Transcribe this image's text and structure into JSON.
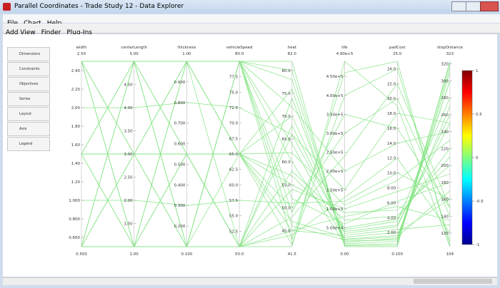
{
  "window": {
    "title": "Parallel Coordinates - Trade Study 12 - Data Explorer"
  },
  "menu": [
    "File",
    "Chart",
    "Help"
  ],
  "toolbar": [
    "Add View",
    "Finder",
    "Plug-Ins"
  ],
  "sidebar": [
    "Dimensions",
    "Constraints",
    "Objectives",
    "Series",
    "Layout",
    "Axis",
    "Legend"
  ],
  "chart_data": {
    "type": "parallel",
    "color": "#84e484",
    "axes": [
      {
        "name": "width",
        "lim": [
          {
            "value": 0.5,
            "label": "0.500"
          },
          {
            "value": 2.5,
            "label": "2.50"
          }
        ],
        "ticks": [
          {
            "value": 0.6,
            "label": "0.600"
          },
          {
            "value": 0.8,
            "label": "0.800"
          },
          {
            "value": 1.0,
            "label": "1.000"
          },
          {
            "value": 1.2,
            "label": "1.20"
          },
          {
            "value": 1.4,
            "label": "1.40"
          },
          {
            "value": 1.6,
            "label": "1.60"
          },
          {
            "value": 1.8,
            "label": "1.80"
          },
          {
            "value": 2.0,
            "label": "2.00"
          },
          {
            "value": 2.2,
            "label": "2.20"
          },
          {
            "value": 2.4,
            "label": "2.40"
          }
        ]
      },
      {
        "name": "centerLength",
        "lim": [
          {
            "value": 1,
            "label": "1.00"
          },
          {
            "value": 5,
            "label": "5.00"
          }
        ],
        "ticks": [
          {
            "value": 1.5,
            "label": "1.50"
          },
          {
            "value": 2,
            "label": "2.00"
          },
          {
            "value": 2.5,
            "label": "2.50"
          },
          {
            "value": 3,
            "label": "3.00"
          },
          {
            "value": 3.5,
            "label": "3.50"
          },
          {
            "value": 4,
            "label": "4.00"
          },
          {
            "value": 4.5,
            "label": "4.50"
          }
        ]
      },
      {
        "name": "thickness",
        "lim": [
          {
            "value": 0.1,
            "label": "0.100"
          },
          {
            "value": 1,
            "label": "1.00"
          }
        ],
        "ticks": [
          {
            "value": 0.2,
            "label": "0.200"
          },
          {
            "value": 0.3,
            "label": "0.300"
          },
          {
            "value": 0.4,
            "label": "0.400"
          },
          {
            "value": 0.5,
            "label": "0.500"
          },
          {
            "value": 0.6,
            "label": "0.600"
          },
          {
            "value": 0.7,
            "label": "0.700"
          },
          {
            "value": 0.8,
            "label": "0.800"
          },
          {
            "value": 0.9,
            "label": "0.900"
          }
        ]
      },
      {
        "name": "vehicleSpeed",
        "lim": [
          {
            "value": 50,
            "label": "50.0"
          },
          {
            "value": 80,
            "label": "80.0"
          }
        ],
        "ticks": [
          52.5,
          {
            "value": 55,
            "label": "55.0"
          },
          57.5,
          {
            "value": 60,
            "label": "60.0"
          },
          62.5,
          {
            "value": 65,
            "label": "65.0"
          },
          67.5,
          {
            "value": 70,
            "label": "70.0"
          },
          72.5,
          {
            "value": 75,
            "label": "75.0"
          },
          77.5
        ]
      },
      {
        "name": "heat",
        "lim": [
          41.5,
          {
            "value": 82,
            "label": "82.0"
          }
        ],
        "ticks": [
          {
            "value": 45,
            "label": "45.0"
          },
          {
            "value": 50,
            "label": "50.0"
          },
          {
            "value": 55,
            "label": "55.0"
          },
          {
            "value": 60,
            "label": "60.0"
          },
          {
            "value": 65,
            "label": "65.0"
          },
          {
            "value": 70,
            "label": "70.0"
          },
          {
            "value": 75,
            "label": "75.0"
          },
          {
            "value": 80,
            "label": "80.0"
          }
        ]
      },
      {
        "name": "life",
        "lim": [
          {
            "value": 0,
            "label": "0.00"
          },
          {
            "value": 490000,
            "label": "4.90e+5"
          }
        ],
        "ticks": [
          {
            "value": 50000,
            "label": "5.00e+4"
          },
          {
            "value": 100000,
            "label": "1.00e+5"
          },
          {
            "value": 150000,
            "label": "1.50e+5"
          },
          {
            "value": 200000,
            "label": "2.00e+5"
          },
          {
            "value": 250000,
            "label": "2.50e+5"
          },
          {
            "value": 300000,
            "label": "3.00e+5"
          },
          {
            "value": 350000,
            "label": "3.50e+5"
          },
          {
            "value": 400000,
            "label": "4.00e+5"
          },
          {
            "value": 450000,
            "label": "4.50e+5"
          }
        ]
      },
      {
        "name": "padCost",
        "lim": [
          {
            "value": 0.1,
            "label": "0.100"
          },
          {
            "value": 25,
            "label": "25.0"
          }
        ],
        "ticks": [
          {
            "value": 2,
            "label": "2.00"
          },
          {
            "value": 4,
            "label": "4.00"
          },
          {
            "value": 6,
            "label": "6.00"
          },
          {
            "value": 8,
            "label": "8.00"
          },
          {
            "value": 10,
            "label": "10.0"
          },
          {
            "value": 12,
            "label": "12.0"
          },
          {
            "value": 14,
            "label": "14.0"
          },
          {
            "value": 16,
            "label": "16.0"
          },
          {
            "value": 18,
            "label": "18.0"
          },
          {
            "value": 20,
            "label": "20.0"
          },
          {
            "value": 22,
            "label": "22.0"
          },
          {
            "value": 24,
            "label": "24.0"
          }
        ]
      },
      {
        "name": "stopDistance",
        "lim": [
          104,
          323
        ],
        "ticks": [
          120,
          140,
          160,
          180,
          200,
          220,
          240,
          260,
          280,
          300,
          320
        ]
      }
    ],
    "records": [
      [
        2.5,
        5,
        1,
        80,
        78,
        12000,
        1.2,
        300
      ],
      [
        2.5,
        3,
        0.55,
        65,
        70,
        45000,
        3.5,
        280
      ],
      [
        2.5,
        1,
        0.1,
        50,
        66,
        150000,
        18,
        250
      ],
      [
        1.5,
        5,
        0.1,
        80,
        60,
        8000,
        0.8,
        320
      ],
      [
        1.5,
        3,
        1,
        65,
        55,
        90000,
        5,
        200
      ],
      [
        1.5,
        1,
        0.55,
        50,
        48,
        240000,
        22,
        150
      ],
      [
        0.5,
        5,
        0.55,
        50,
        45,
        30000,
        2.4,
        130
      ],
      [
        0.5,
        3,
        0.1,
        80,
        52,
        60000,
        6.2,
        180
      ],
      [
        0.5,
        1,
        1,
        65,
        42,
        400000,
        24,
        110
      ],
      [
        2.5,
        5,
        0.55,
        50,
        74,
        20000,
        1.6,
        270
      ],
      [
        2.5,
        3,
        1,
        80,
        80,
        5000,
        0.5,
        315
      ],
      [
        2.5,
        1,
        0.55,
        65,
        62,
        110000,
        9,
        230
      ],
      [
        1.5,
        5,
        1,
        50,
        58,
        70000,
        4.2,
        210
      ],
      [
        1.5,
        3,
        0.1,
        80,
        64,
        15000,
        1.0,
        300
      ],
      [
        1.5,
        1,
        1,
        65,
        50,
        300000,
        20,
        140
      ],
      [
        0.5,
        5,
        1,
        65,
        47,
        25000,
        2.0,
        160
      ],
      [
        0.5,
        3,
        0.55,
        50,
        44,
        130000,
        12,
        120
      ],
      [
        0.5,
        1,
        0.1,
        80,
        43,
        460000,
        25,
        105
      ],
      [
        2.5,
        5,
        0.1,
        65,
        76,
        3000,
        0.3,
        310
      ],
      [
        2.5,
        3,
        0.1,
        50,
        68,
        35000,
        2.8,
        260
      ],
      [
        2.5,
        1,
        1,
        80,
        72,
        200000,
        14,
        240
      ],
      [
        1.5,
        5,
        0.55,
        65,
        57,
        50000,
        3.8,
        220
      ],
      [
        1.5,
        3,
        0.55,
        50,
        54,
        100000,
        7.5,
        190
      ],
      [
        1.5,
        1,
        0.1,
        80,
        49,
        350000,
        16,
        150
      ],
      [
        0.5,
        5,
        0.1,
        80,
        46,
        18000,
        1.4,
        170
      ],
      [
        0.5,
        3,
        1,
        65,
        45,
        80000,
        5.5,
        135
      ],
      [
        0.5,
        1,
        0.55,
        50,
        41.5,
        490000,
        19,
        104
      ],
      [
        2.0,
        4,
        0.8,
        72.5,
        66,
        40000,
        3.0,
        250
      ],
      [
        1.0,
        2,
        0.3,
        57.5,
        51,
        120000,
        10,
        160
      ],
      [
        2.5,
        5,
        1,
        80,
        82,
        0,
        0.1,
        323
      ]
    ],
    "colorbar": {
      "lim": [
        -1,
        1
      ],
      "ticks": [
        1,
        0.5,
        0,
        -0.5,
        -1
      ]
    }
  }
}
